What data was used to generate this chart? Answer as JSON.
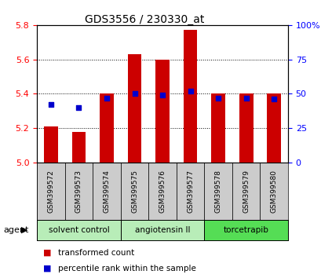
{
  "title": "GDS3556 / 230330_at",
  "samples": [
    "GSM399572",
    "GSM399573",
    "GSM399574",
    "GSM399575",
    "GSM399576",
    "GSM399577",
    "GSM399578",
    "GSM399579",
    "GSM399580"
  ],
  "bar_values": [
    5.21,
    5.18,
    5.4,
    5.63,
    5.6,
    5.77,
    5.4,
    5.4,
    5.4
  ],
  "percentile_values": [
    42,
    40,
    47,
    50,
    49,
    52,
    47,
    47,
    46
  ],
  "bar_color": "#cc0000",
  "dot_color": "#0000cc",
  "ylim_left": [
    5.0,
    5.8
  ],
  "ylim_right": [
    0,
    100
  ],
  "yticks_left": [
    5.0,
    5.2,
    5.4,
    5.6,
    5.8
  ],
  "yticks_right": [
    0,
    25,
    50,
    75,
    100
  ],
  "ytick_labels_right": [
    "0",
    "25",
    "50",
    "75",
    "100%"
  ],
  "groups": [
    {
      "label": "solvent control",
      "indices": [
        0,
        1,
        2
      ],
      "color": "#c8f0b0"
    },
    {
      "label": "angiotensin II",
      "indices": [
        3,
        4,
        5
      ],
      "color": "#c8f0b0"
    },
    {
      "label": "torcetrapib",
      "indices": [
        6,
        7,
        8
      ],
      "color": "#66dd66"
    }
  ],
  "agent_label": "agent",
  "legend_bar_label": "transformed count",
  "legend_dot_label": "percentile rank within the sample",
  "bar_width": 0.5
}
